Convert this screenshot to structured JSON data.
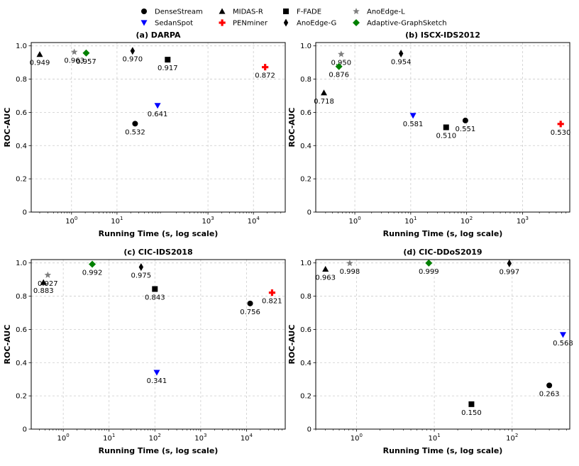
{
  "legend": {
    "entries": [
      {
        "name": "DenseStream",
        "marker": "circle",
        "color": "#000000"
      },
      {
        "name": "MIDAS-R",
        "marker": "triangle-up",
        "color": "#000000"
      },
      {
        "name": "F-FADE",
        "marker": "square",
        "color": "#000000"
      },
      {
        "name": "AnoEdge-L",
        "marker": "star",
        "color": "#808080"
      },
      {
        "name": "SedanSpot",
        "marker": "triangle-down",
        "color": "#0000ff"
      },
      {
        "name": "PENminer",
        "marker": "plus",
        "color": "#ff0000"
      },
      {
        "name": "AnoEdge-G",
        "marker": "diamond-thin",
        "color": "#000000"
      },
      {
        "name": "Adaptive-GraphSketch",
        "marker": "diamond",
        "color": "#008000"
      }
    ]
  },
  "chart_data": [
    {
      "type": "scatter",
      "title": "(a) DARPA",
      "xlabel": "Running Time (s, log scale)",
      "ylabel": "ROC-AUC",
      "xscale": "log",
      "xlim": [
        0.13,
        50000
      ],
      "ylim": [
        0,
        1.02
      ],
      "xticks": [
        {
          "v": 1,
          "e": "0"
        },
        {
          "v": 10,
          "e": "1"
        },
        {
          "v": 1000,
          "e": "3"
        },
        {
          "v": 10000,
          "e": "4"
        }
      ],
      "yticks": [
        "0",
        "0.2",
        "0.4",
        "0.6",
        "0.8",
        "1.0"
      ],
      "points": [
        {
          "method": "MIDAS-R",
          "x": 0.2,
          "y": 0.949,
          "label": "0.949"
        },
        {
          "method": "AnoEdge-L",
          "x": 1.15,
          "y": 0.963,
          "label": "0.963"
        },
        {
          "method": "Adaptive-GraphSketch",
          "x": 2.1,
          "y": 0.957,
          "label": "0.957"
        },
        {
          "method": "AnoEdge-G",
          "x": 22,
          "y": 0.97,
          "label": "0.970"
        },
        {
          "method": "F-FADE",
          "x": 130,
          "y": 0.917,
          "label": "0.917"
        },
        {
          "method": "DenseStream",
          "x": 25,
          "y": 0.532,
          "label": "0.532"
        },
        {
          "method": "SedanSpot",
          "x": 78,
          "y": 0.641,
          "label": "0.641"
        },
        {
          "method": "PENminer",
          "x": 18000,
          "y": 0.872,
          "label": "0.872"
        }
      ]
    },
    {
      "type": "scatter",
      "title": "(b) ISCX-IDS2012",
      "xlabel": "Running Time (s, log scale)",
      "ylabel": "ROC-AUC",
      "xscale": "log",
      "xlim": [
        0.2,
        7000
      ],
      "ylim": [
        0,
        1.02
      ],
      "xticks": [
        {
          "v": 1,
          "e": "0"
        },
        {
          "v": 10,
          "e": "1"
        },
        {
          "v": 100,
          "e": "2"
        },
        {
          "v": 1000,
          "e": "3"
        }
      ],
      "yticks": [
        "0",
        "0.2",
        "0.4",
        "0.6",
        "0.8",
        "1.0"
      ],
      "points": [
        {
          "method": "AnoEdge-L",
          "x": 0.57,
          "y": 0.95,
          "label": "0.950"
        },
        {
          "method": "Adaptive-GraphSketch",
          "x": 0.52,
          "y": 0.876,
          "label": "0.876"
        },
        {
          "method": "MIDAS-R",
          "x": 0.28,
          "y": 0.718,
          "label": "0.718"
        },
        {
          "method": "AnoEdge-G",
          "x": 6.7,
          "y": 0.954,
          "label": "0.954"
        },
        {
          "method": "SedanSpot",
          "x": 11,
          "y": 0.581,
          "label": "0.581"
        },
        {
          "method": "F-FADE",
          "x": 43,
          "y": 0.51,
          "label": "0.510"
        },
        {
          "method": "DenseStream",
          "x": 95,
          "y": 0.551,
          "label": "0.551"
        },
        {
          "method": "PENminer",
          "x": 4800,
          "y": 0.53,
          "label": "0.530"
        }
      ]
    },
    {
      "type": "scatter",
      "title": "(c) CIC-IDS2018",
      "xlabel": "Running Time (s, log scale)",
      "ylabel": "ROC-AUC",
      "xscale": "log",
      "xlim": [
        0.2,
        70000
      ],
      "ylim": [
        0,
        1.02
      ],
      "xticks": [
        {
          "v": 1,
          "e": "0"
        },
        {
          "v": 10,
          "e": "1"
        },
        {
          "v": 100,
          "e": "2"
        },
        {
          "v": 1000,
          "e": "3"
        },
        {
          "v": 10000,
          "e": "4"
        }
      ],
      "yticks": [
        "0",
        "0.2",
        "0.4",
        "0.6",
        "0.8",
        "1.0"
      ],
      "points": [
        {
          "method": "AnoEdge-L",
          "x": 0.46,
          "y": 0.927,
          "label": "0.927"
        },
        {
          "method": "MIDAS-R",
          "x": 0.37,
          "y": 0.883,
          "label": "0.883"
        },
        {
          "method": "Adaptive-GraphSketch",
          "x": 4.3,
          "y": 0.992,
          "label": "0.992"
        },
        {
          "method": "AnoEdge-G",
          "x": 50,
          "y": 0.975,
          "label": "0.975"
        },
        {
          "method": "F-FADE",
          "x": 100,
          "y": 0.843,
          "label": "0.843"
        },
        {
          "method": "SedanSpot",
          "x": 110,
          "y": 0.341,
          "label": "0.341"
        },
        {
          "method": "DenseStream",
          "x": 12000,
          "y": 0.756,
          "label": "0.756"
        },
        {
          "method": "PENminer",
          "x": 36000,
          "y": 0.821,
          "label": "0.821"
        }
      ]
    },
    {
      "type": "scatter",
      "title": "(d) CIC-DDoS2019",
      "xlabel": "Running Time (s, log scale)",
      "ylabel": "ROC-AUC",
      "xscale": "log",
      "xlim": [
        0.3,
        550
      ],
      "ylim": [
        0,
        1.02
      ],
      "xticks": [
        {
          "v": 1,
          "e": "0"
        },
        {
          "v": 10,
          "e": "1"
        },
        {
          "v": 100,
          "e": "2"
        }
      ],
      "yticks": [
        "0",
        "0.2",
        "0.4",
        "0.6",
        "0.8",
        "1.0"
      ],
      "points": [
        {
          "method": "MIDAS-R",
          "x": 0.4,
          "y": 0.963,
          "label": "0.963"
        },
        {
          "method": "AnoEdge-L",
          "x": 0.82,
          "y": 0.998,
          "label": "0.998"
        },
        {
          "method": "Adaptive-GraphSketch",
          "x": 8.5,
          "y": 0.999,
          "label": "0.999"
        },
        {
          "method": "AnoEdge-G",
          "x": 92,
          "y": 0.997,
          "label": "0.997"
        },
        {
          "method": "F-FADE",
          "x": 30,
          "y": 0.15,
          "label": "0.150"
        },
        {
          "method": "DenseStream",
          "x": 300,
          "y": 0.263,
          "label": "0.263"
        },
        {
          "method": "SedanSpot",
          "x": 450,
          "y": 0.568,
          "label": "0.568"
        }
      ]
    }
  ]
}
